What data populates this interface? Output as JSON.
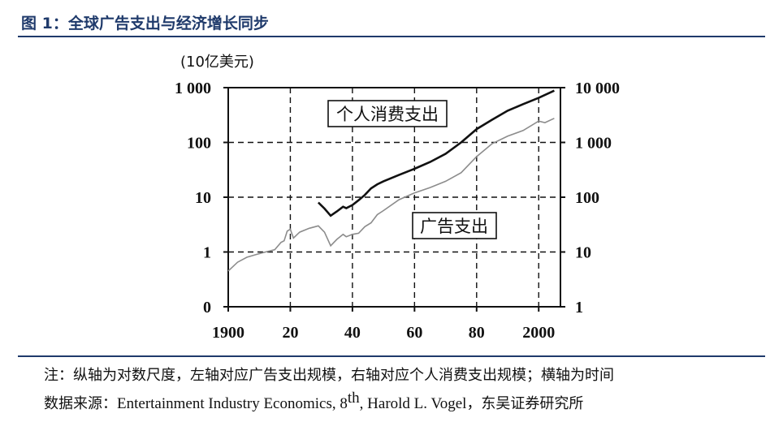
{
  "header": {
    "title": "图 1：全球广告支出与经济增长同步"
  },
  "chart_data": {
    "type": "line",
    "unit_label": "(10亿美元)",
    "x_ticks": [
      "1900",
      "20",
      "40",
      "60",
      "80",
      "2000"
    ],
    "x_tick_values": [
      1900,
      1920,
      1940,
      1960,
      1980,
      2000
    ],
    "xlim": [
      1900,
      2007
    ],
    "left_axis": {
      "ticks": [
        "1 000",
        "100",
        "10",
        "1",
        "0"
      ],
      "tick_values": [
        1000,
        100,
        10,
        1,
        0.1
      ],
      "scale": "log",
      "ylim": [
        0.1,
        1000
      ]
    },
    "right_axis": {
      "ticks": [
        "10 000",
        "1 000",
        "100",
        "10",
        "1"
      ],
      "tick_values": [
        10000,
        1000,
        100,
        10,
        1
      ],
      "scale": "log",
      "ylim": [
        1,
        10000
      ]
    },
    "grid": true,
    "series": [
      {
        "name": "个人消费支出",
        "axis": "right",
        "color": "#111111",
        "x": [
          1929,
          1931,
          1933,
          1935,
          1937,
          1938,
          1940,
          1942,
          1944,
          1946,
          1948,
          1950,
          1955,
          1960,
          1965,
          1970,
          1975,
          1980,
          1985,
          1990,
          1995,
          2000,
          2005
        ],
        "y": [
          80,
          62,
          46,
          55,
          67,
          63,
          72,
          88,
          110,
          145,
          172,
          195,
          255,
          330,
          440,
          620,
          1000,
          1750,
          2600,
          3800,
          5000,
          6500,
          8800
        ]
      },
      {
        "name": "广告支出",
        "axis": "left",
        "color": "#8c8c8c",
        "x": [
          1900,
          1903,
          1906,
          1909,
          1912,
          1915,
          1917,
          1918,
          1919,
          1920,
          1921,
          1923,
          1926,
          1929,
          1931,
          1933,
          1935,
          1937,
          1938,
          1940,
          1942,
          1944,
          1946,
          1948,
          1950,
          1955,
          1960,
          1965,
          1970,
          1975,
          1980,
          1985,
          1990,
          1995,
          2000,
          2002,
          2005
        ],
        "y": [
          0.45,
          0.65,
          0.8,
          0.9,
          1.0,
          1.1,
          1.5,
          1.6,
          2.4,
          2.6,
          1.8,
          2.3,
          2.7,
          3.0,
          2.3,
          1.3,
          1.7,
          2.1,
          1.9,
          2.1,
          2.2,
          2.9,
          3.4,
          4.8,
          5.7,
          9.0,
          12.0,
          15.0,
          19.5,
          28.0,
          55.0,
          95.0,
          130.0,
          165.0,
          245.0,
          230.0,
          275.0
        ]
      }
    ]
  },
  "footer": {
    "note": "注：纵轴为对数尺度，左轴对应广告支出规模，右轴对应个人消费支出规模；横轴为时间",
    "source_label": "数据来源：",
    "source_en": "Entertainment Industry Economics, 8",
    "source_sup": "th",
    "source_author": ", Harold L. Vogel",
    "source_cn": "，东吴证券研究所"
  }
}
